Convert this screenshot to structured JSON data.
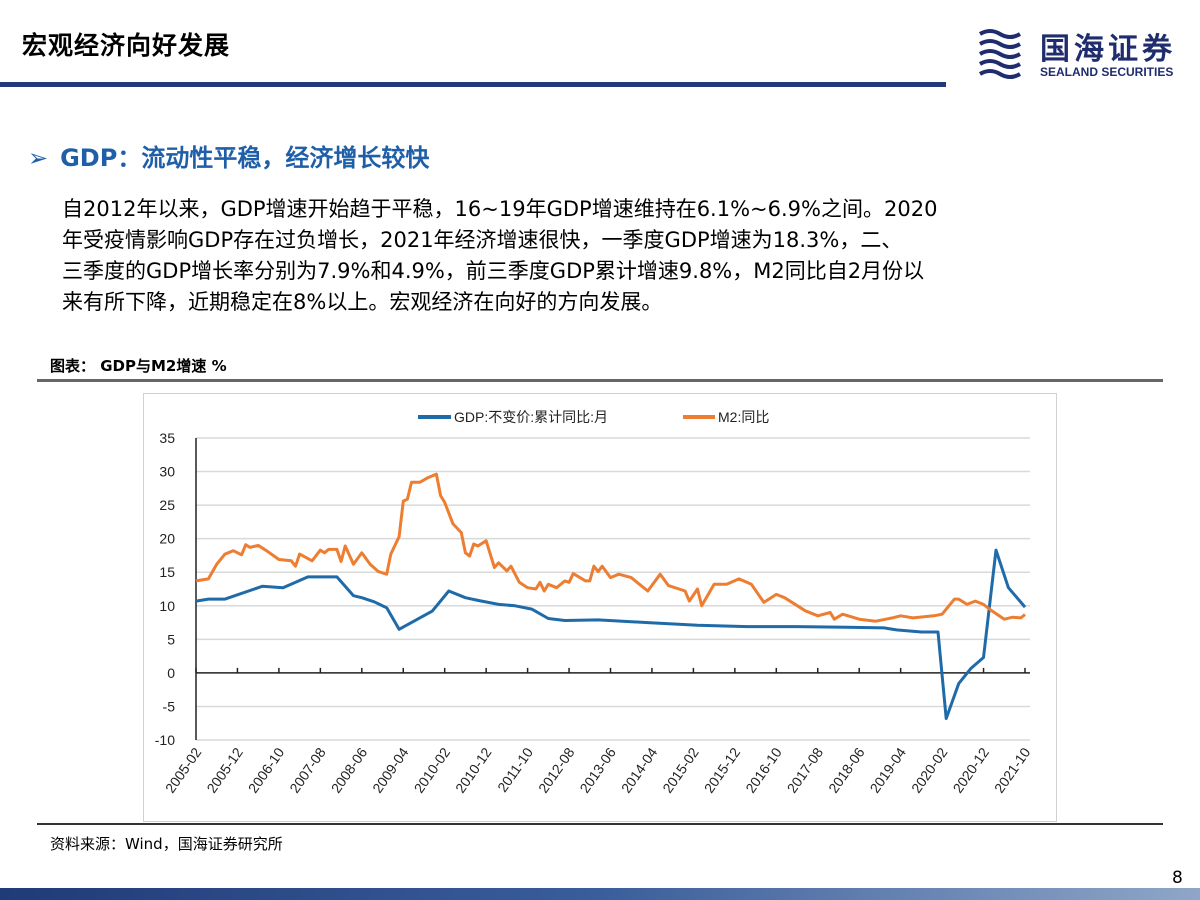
{
  "header": {
    "title": "宏观经济向好发展",
    "logo_cn": "国海证券",
    "logo_en": "SEALAND SECURITIES"
  },
  "section": {
    "arrow": "➢",
    "heading": "GDP：流动性平稳，经济增长较快"
  },
  "body_lines": [
    "自2012年以来，GDP增速开始趋于平稳，16~19年GDP增速维持在6.1%~6.9%之间。2020",
    "年受疫情影响GDP存在过负增长，2021年经济增速很快，一季度GDP增速为18.3%，二、",
    "三季度的GDP增长率分别为7.9%和4.9%，前三季度GDP累计增速9.8%，M2同比自2月份以",
    "来有所下降，近期稳定在8%以上。宏观经济在向好的方向发展。"
  ],
  "figure_caption": "图表： GDP与M2增速 %",
  "source": "资料来源：Wind，国海证券研究所",
  "page_number": "8",
  "colors": {
    "brand": "#1f3b78",
    "heading": "#1f5fa8",
    "gdp": "#1f6aa8",
    "m2": "#ed7d31"
  },
  "chart_data": {
    "type": "line",
    "ylim": [
      -10,
      35
    ],
    "yticks": [
      "35",
      "30",
      "25",
      "20",
      "15",
      "10",
      "5",
      "0",
      "-5",
      "-10"
    ],
    "xlim": [
      "2005-02",
      "2021-10"
    ],
    "xticks": [
      "2005-02",
      "2005-12",
      "2006-10",
      "2007-08",
      "2008-06",
      "2009-04",
      "2010-02",
      "2010-12",
      "2011-10",
      "2012-08",
      "2013-06",
      "2014-04",
      "2015-02",
      "2015-12",
      "2016-10",
      "2017-08",
      "2018-06",
      "2019-04",
      "2020-02",
      "2020-12",
      "2021-10"
    ],
    "grid": true,
    "legend": "top",
    "series": [
      {
        "name": "GDP:不变价:累计同比:月",
        "color": "#1f6aa8",
        "points": [
          [
            "2005-02",
            10.7
          ],
          [
            "2005-05",
            11.0
          ],
          [
            "2005-09",
            11.0
          ],
          [
            "2006-06",
            12.9
          ],
          [
            "2006-11",
            12.7
          ],
          [
            "2007-05",
            14.3
          ],
          [
            "2007-12",
            14.3
          ],
          [
            "2008-04",
            11.5
          ],
          [
            "2008-06",
            11.2
          ],
          [
            "2008-09",
            10.6
          ],
          [
            "2008-12",
            9.7
          ],
          [
            "2009-03",
            6.5
          ],
          [
            "2009-11",
            9.2
          ],
          [
            "2010-03",
            12.2
          ],
          [
            "2010-07",
            11.2
          ],
          [
            "2010-10",
            10.8
          ],
          [
            "2011-03",
            10.2
          ],
          [
            "2011-07",
            10.0
          ],
          [
            "2011-11",
            9.5
          ],
          [
            "2012-03",
            8.1
          ],
          [
            "2012-07",
            7.8
          ],
          [
            "2013-03",
            7.9
          ],
          [
            "2014-03",
            7.5
          ],
          [
            "2015-03",
            7.1
          ],
          [
            "2016-03",
            6.9
          ],
          [
            "2017-03",
            6.9
          ],
          [
            "2018-03",
            6.8
          ],
          [
            "2018-12",
            6.7
          ],
          [
            "2019-03",
            6.4
          ],
          [
            "2019-09",
            6.1
          ],
          [
            "2020-01",
            6.1
          ],
          [
            "2020-03",
            -6.8
          ],
          [
            "2020-06",
            -1.6
          ],
          [
            "2020-09",
            0.7
          ],
          [
            "2020-12",
            2.3
          ],
          [
            "2021-03",
            18.3
          ],
          [
            "2021-06",
            12.7
          ],
          [
            "2021-10",
            9.8
          ]
        ]
      },
      {
        "name": "M2:同比",
        "color": "#ed7d31",
        "points": [
          [
            "2005-02",
            13.7
          ],
          [
            "2005-05",
            14.0
          ],
          [
            "2005-07",
            16.2
          ],
          [
            "2005-09",
            17.7
          ],
          [
            "2005-11",
            18.2
          ],
          [
            "2006-01",
            17.6
          ],
          [
            "2006-02",
            19.1
          ],
          [
            "2006-03",
            18.7
          ],
          [
            "2006-05",
            19.0
          ],
          [
            "2006-07",
            18.2
          ],
          [
            "2006-10",
            16.9
          ],
          [
            "2007-01",
            16.7
          ],
          [
            "2007-02",
            15.9
          ],
          [
            "2007-03",
            17.7
          ],
          [
            "2007-06",
            16.7
          ],
          [
            "2007-08",
            18.3
          ],
          [
            "2007-09",
            17.9
          ],
          [
            "2007-10",
            18.4
          ],
          [
            "2007-12",
            18.4
          ],
          [
            "2008-01",
            16.6
          ],
          [
            "2008-02",
            18.9
          ],
          [
            "2008-04",
            16.2
          ],
          [
            "2008-06",
            17.9
          ],
          [
            "2008-08",
            16.2
          ],
          [
            "2008-10",
            15.1
          ],
          [
            "2008-12",
            14.7
          ],
          [
            "2009-01",
            17.7
          ],
          [
            "2009-03",
            20.3
          ],
          [
            "2009-04",
            25.6
          ],
          [
            "2009-05",
            25.9
          ],
          [
            "2009-06",
            28.4
          ],
          [
            "2009-08",
            28.4
          ],
          [
            "2009-10",
            29.1
          ],
          [
            "2009-12",
            29.6
          ],
          [
            "2010-01",
            26.4
          ],
          [
            "2010-02",
            25.4
          ],
          [
            "2010-04",
            22.2
          ],
          [
            "2010-06",
            20.9
          ],
          [
            "2010-07",
            17.9
          ],
          [
            "2010-08",
            17.4
          ],
          [
            "2010-09",
            19.2
          ],
          [
            "2010-10",
            18.9
          ],
          [
            "2010-12",
            19.7
          ],
          [
            "2011-02",
            15.7
          ],
          [
            "2011-03",
            16.4
          ],
          [
            "2011-05",
            15.2
          ],
          [
            "2011-06",
            15.9
          ],
          [
            "2011-08",
            13.5
          ],
          [
            "2011-10",
            12.7
          ],
          [
            "2011-12",
            12.5
          ],
          [
            "2012-01",
            13.5
          ],
          [
            "2012-02",
            12.2
          ],
          [
            "2012-03",
            13.2
          ],
          [
            "2012-05",
            12.7
          ],
          [
            "2012-07",
            13.7
          ],
          [
            "2012-08",
            13.5
          ],
          [
            "2012-09",
            14.8
          ],
          [
            "2012-12",
            13.7
          ],
          [
            "2013-01",
            13.7
          ],
          [
            "2013-02",
            15.9
          ],
          [
            "2013-03",
            15.1
          ],
          [
            "2013-04",
            15.9
          ],
          [
            "2013-06",
            14.2
          ],
          [
            "2013-08",
            14.7
          ],
          [
            "2013-11",
            14.2
          ],
          [
            "2014-03",
            12.2
          ],
          [
            "2014-06",
            14.7
          ],
          [
            "2014-08",
            13.0
          ],
          [
            "2014-12",
            12.2
          ],
          [
            "2015-01",
            10.7
          ],
          [
            "2015-03",
            12.5
          ],
          [
            "2015-04",
            10.0
          ],
          [
            "2015-07",
            13.2
          ],
          [
            "2015-10",
            13.2
          ],
          [
            "2016-01",
            14.0
          ],
          [
            "2016-04",
            13.2
          ],
          [
            "2016-07",
            10.5
          ],
          [
            "2016-10",
            11.7
          ],
          [
            "2016-12",
            11.2
          ],
          [
            "2017-05",
            9.25
          ],
          [
            "2017-08",
            8.5
          ],
          [
            "2017-11",
            9.0
          ],
          [
            "2017-12",
            8.0
          ],
          [
            "2018-02",
            8.75
          ],
          [
            "2018-06",
            8.0
          ],
          [
            "2018-10",
            7.7
          ],
          [
            "2019-02",
            8.2
          ],
          [
            "2019-04",
            8.5
          ],
          [
            "2019-07",
            8.2
          ],
          [
            "2019-12",
            8.5
          ],
          [
            "2020-02",
            8.75
          ],
          [
            "2020-05",
            11.0
          ],
          [
            "2020-06",
            11.0
          ],
          [
            "2020-08",
            10.2
          ],
          [
            "2020-10",
            10.7
          ],
          [
            "2020-12",
            10.2
          ],
          [
            "2021-02",
            9.25
          ],
          [
            "2021-05",
            8.0
          ],
          [
            "2021-07",
            8.3
          ],
          [
            "2021-09",
            8.2
          ],
          [
            "2021-10",
            8.7
          ]
        ]
      }
    ]
  }
}
